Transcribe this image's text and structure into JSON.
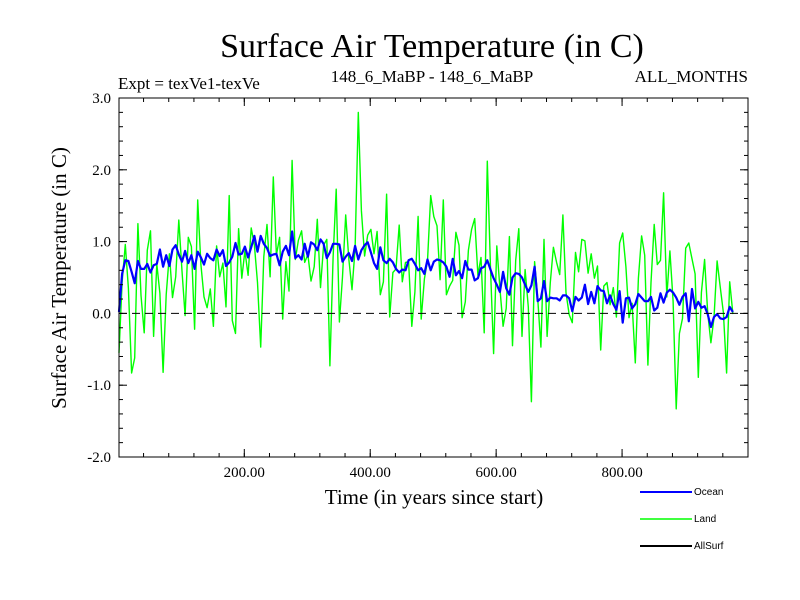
{
  "chart_data": {
    "type": "line",
    "title": "Surface Air Temperature (in C)",
    "subtitle_left": "Expt = texVe1-texVe",
    "subtitle_center": "148_6_MaBP - 148_6_MaBP",
    "subtitle_right": "ALL_MONTHS",
    "xlabel": "Time (in years since start)",
    "ylabel": "Surface Air Temperature (in C)",
    "xlim": [
      1,
      1000
    ],
    "ylim": [
      -2.0,
      3.0
    ],
    "xticks": [
      200,
      400,
      600,
      800
    ],
    "xtick_labels": [
      "200.00",
      "400.00",
      "600.00",
      "800.00"
    ],
    "yticks": [
      -2.0,
      -1.0,
      0.0,
      1.0,
      2.0,
      3.0
    ],
    "ytick_labels": [
      "-2.0",
      "-1.0",
      "0.0",
      "1.0",
      "2.0",
      "3.0"
    ],
    "reference_line": {
      "y": 0.0,
      "style": "dashed"
    },
    "x_step": 5,
    "series": [
      {
        "name": "Land",
        "color": "#00ff00",
        "values": [
          -0.55,
          0.43,
          0.96,
          0.35,
          -0.83,
          -0.62,
          1.25,
          0.25,
          -0.27,
          0.88,
          1.15,
          -0.32,
          0.69,
          0.28,
          -0.82,
          0.26,
          0.83,
          0.22,
          0.51,
          1.3,
          0.59,
          -0.03,
          1.06,
          0.93,
          -0.22,
          1.58,
          0.68,
          0.23,
          0.08,
          0.34,
          -0.18,
          0.94,
          0.51,
          0.7,
          0.09,
          1.64,
          -0.1,
          -0.28,
          1.18,
          0.49,
          0.87,
          0.53,
          1.19,
          0.95,
          0.43,
          -0.47,
          0.79,
          1.24,
          0.51,
          1.9,
          0.81,
          1.06,
          -0.08,
          0.72,
          0.31,
          2.13,
          0.75,
          1.02,
          1.15,
          0.71,
          0.82,
          0.45,
          0.65,
          1.31,
          0.36,
          0.95,
          1.03,
          -0.73,
          0.78,
          1.73,
          -0.12,
          0.51,
          1.37,
          0.76,
          0.33,
          0.9,
          2.8,
          1.43,
          0.8,
          1.09,
          1.17,
          0.83,
          1.14,
          0.26,
          0.44,
          1.66,
          -0.05,
          0.57,
          0.62,
          1.23,
          0.44,
          0.71,
          0.72,
          -0.18,
          0.3,
          1.35,
          -0.08,
          0.48,
          0.73,
          1.64,
          1.35,
          1.22,
          0.47,
          1.58,
          0.26,
          0.38,
          0.46,
          1.13,
          0.95,
          -0.06,
          0.16,
          0.88,
          1.17,
          1.32,
          0.53,
          0.78,
          -0.27,
          2.12,
          0.63,
          -0.56,
          0.94,
          0.35,
          -0.18,
          0.07,
          1.07,
          -0.45,
          0.74,
          1.18,
          -0.32,
          0.61,
          0.09,
          -1.23,
          0.72,
          0.21,
          -0.47,
          1.03,
          -0.32,
          0.43,
          0.92,
          0.71,
          0.54,
          1.37,
          0.29,
          -0.02,
          -0.13,
          0.85,
          0.58,
          1.03,
          1.01,
          0.56,
          0.83,
          0.49,
          0.66,
          -0.51,
          0.38,
          0.43,
          0.12,
          0.36,
          -0.05,
          0.98,
          1.12,
          0.65,
          -0.06,
          0.14,
          -0.69,
          0.49,
          1.08,
          0.81,
          -0.72,
          0.43,
          1.24,
          0.68,
          0.74,
          1.68,
          0.23,
          0.87,
          0.17,
          -1.33,
          -0.28,
          -0.07,
          0.91,
          0.98,
          0.76,
          0.55,
          -0.89,
          0.29,
          0.75,
          0.01,
          -0.41,
          -0.06,
          0.73,
          0.36,
          0.01,
          -0.83,
          0.44,
          -0.01
        ]
      },
      {
        "name": "Ocean",
        "color": "#0000ff",
        "values": [
          0.02,
          0.55,
          0.74,
          0.73,
          0.58,
          0.42,
          0.73,
          0.62,
          0.62,
          0.69,
          0.57,
          0.67,
          0.69,
          0.89,
          0.65,
          0.81,
          0.66,
          0.89,
          0.95,
          0.82,
          0.72,
          0.87,
          0.7,
          0.81,
          0.62,
          0.86,
          0.78,
          0.68,
          0.83,
          0.77,
          0.74,
          0.89,
          0.8,
          0.88,
          0.66,
          0.71,
          0.79,
          0.98,
          0.82,
          0.83,
          0.93,
          0.78,
          0.92,
          1.08,
          0.86,
          1.08,
          0.97,
          0.91,
          0.8,
          0.82,
          0.83,
          0.67,
          0.86,
          0.94,
          0.81,
          1.14,
          0.77,
          0.81,
          0.75,
          0.97,
          0.79,
          0.99,
          0.96,
          0.88,
          1.03,
          0.97,
          0.77,
          0.85,
          0.97,
          0.97,
          0.96,
          0.72,
          0.79,
          0.84,
          0.73,
          0.94,
          0.75,
          0.88,
          0.95,
          0.99,
          0.85,
          0.7,
          0.62,
          0.92,
          0.74,
          0.7,
          0.76,
          0.71,
          0.62,
          0.57,
          0.61,
          0.6,
          0.74,
          0.76,
          0.69,
          0.6,
          0.63,
          0.55,
          0.75,
          0.6,
          0.72,
          0.75,
          0.74,
          0.71,
          0.65,
          0.51,
          0.76,
          0.53,
          0.59,
          0.49,
          0.73,
          0.61,
          0.61,
          0.46,
          0.49,
          0.63,
          0.65,
          0.74,
          0.61,
          0.49,
          0.4,
          0.3,
          0.58,
          0.35,
          0.26,
          0.5,
          0.56,
          0.55,
          0.5,
          0.4,
          0.3,
          0.39,
          0.65,
          0.17,
          0.21,
          0.45,
          0.17,
          0.22,
          0.21,
          0.21,
          0.18,
          0.25,
          0.25,
          0.21,
          0.03,
          0.23,
          0.18,
          0.22,
          0.4,
          0.13,
          0.3,
          0.14,
          0.38,
          0.32,
          0.31,
          0.14,
          0.25,
          0.13,
          0.05,
          0.31,
          -0.13,
          0.21,
          0.22,
          0.07,
          0.13,
          0.27,
          0.22,
          0.17,
          0.17,
          0.23,
          0.04,
          0.08,
          0.28,
          0.15,
          0.29,
          0.33,
          0.29,
          0.22,
          0.12,
          0.23,
          0.28,
          -0.11,
          0.34,
          0.07,
          0.16,
          0.08,
          0.1,
          -0.01,
          -0.19,
          -0.05,
          -0.01,
          -0.07,
          -0.08,
          -0.05,
          0.09,
          0.02
        ]
      },
      {
        "name": "AllSurf",
        "color": "#000000",
        "values": []
      }
    ],
    "legend": {
      "placement": "bottom-right",
      "entries": [
        "Ocean",
        "Land",
        "AllSurf"
      ]
    }
  }
}
